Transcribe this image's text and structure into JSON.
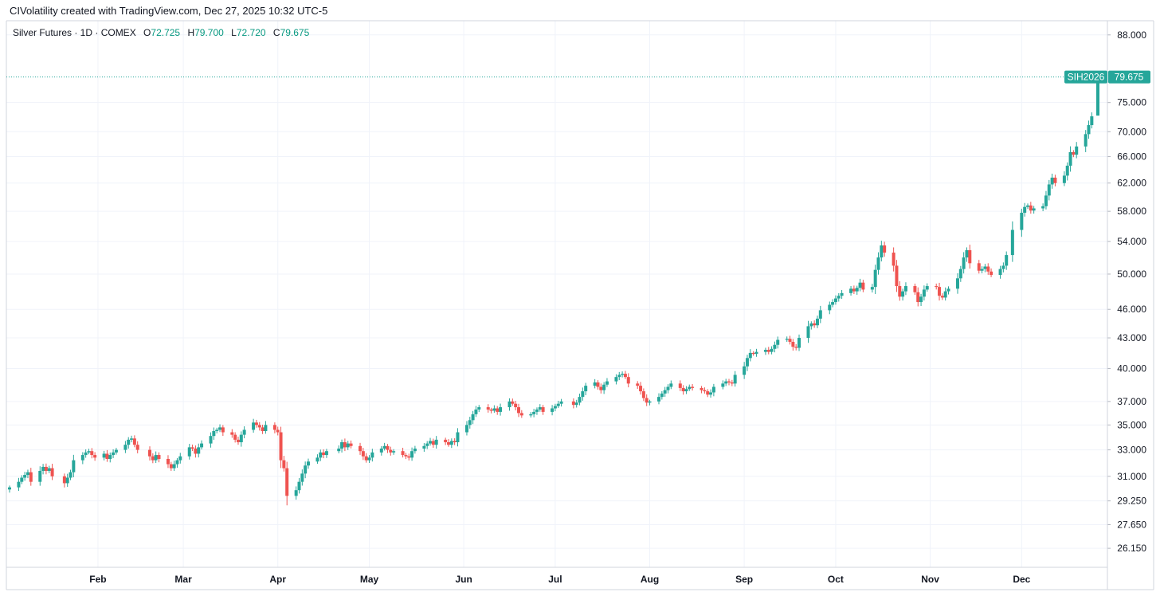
{
  "header": {
    "attribution": "CIVolatility created with TradingView.com, Dec 27, 2025 10:32 UTC-5"
  },
  "legend": {
    "symbol": "Silver Futures · 1D · COMEX",
    "open_label": "O",
    "open": "72.725",
    "high_label": "H",
    "high": "79.700",
    "low_label": "L",
    "low": "72.720",
    "close_label": "C",
    "close": "79.675"
  },
  "price_tag": {
    "symbol": "SIH2026",
    "price": "79.675"
  },
  "colors": {
    "up": "#26a69a",
    "down": "#ef5350",
    "grid": "#f0f3fa",
    "axis_text": "#131722"
  },
  "chart_data": {
    "type": "candlestick",
    "title": "Silver Futures · 1D · COMEX",
    "y_scale": "log",
    "y_ticks": [
      "88.000",
      "75.000",
      "70.000",
      "66.000",
      "62.000",
      "58.000",
      "54.000",
      "50.000",
      "46.000",
      "43.000",
      "40.000",
      "37.000",
      "35.000",
      "33.000",
      "31.000",
      "29.250",
      "27.650",
      "26.150"
    ],
    "x_ticks": [
      {
        "label": "Feb",
        "date": "2025-02-01"
      },
      {
        "label": "Mar",
        "date": "2025-03-01"
      },
      {
        "label": "Apr",
        "date": "2025-04-01"
      },
      {
        "label": "May",
        "date": "2025-05-01"
      },
      {
        "label": "Jun",
        "date": "2025-06-01"
      },
      {
        "label": "Jul",
        "date": "2025-07-01"
      },
      {
        "label": "Aug",
        "date": "2025-08-01"
      },
      {
        "label": "Sep",
        "date": "2025-09-01"
      },
      {
        "label": "Oct",
        "date": "2025-10-01"
      },
      {
        "label": "Nov",
        "date": "2025-11-01"
      },
      {
        "label": "Dec",
        "date": "2025-12-01"
      }
    ],
    "x_range": [
      "2025-01-03",
      "2025-12-26"
    ],
    "y_range": [
      25.0,
      91.0
    ],
    "series_close": [
      [
        "2025-01-03",
        30.2
      ],
      [
        "2025-01-06",
        30.6
      ],
      [
        "2025-01-07",
        30.9
      ],
      [
        "2025-01-08",
        31.1
      ],
      [
        "2025-01-09",
        31.3
      ],
      [
        "2025-01-10",
        30.6
      ],
      [
        "2025-01-13",
        31.4
      ],
      [
        "2025-01-14",
        31.7
      ],
      [
        "2025-01-15",
        31.4
      ],
      [
        "2025-01-16",
        31.6
      ],
      [
        "2025-01-17",
        31.0
      ],
      [
        "2025-01-21",
        30.5
      ],
      [
        "2025-01-22",
        30.9
      ],
      [
        "2025-01-23",
        31.3
      ],
      [
        "2025-01-24",
        32.2
      ],
      [
        "2025-01-27",
        32.6
      ],
      [
        "2025-01-28",
        32.8
      ],
      [
        "2025-01-29",
        32.9
      ],
      [
        "2025-01-30",
        32.6
      ],
      [
        "2025-01-31",
        32.4
      ],
      [
        "2025-02-03",
        32.7
      ],
      [
        "2025-02-04",
        32.3
      ],
      [
        "2025-02-05",
        32.6
      ],
      [
        "2025-02-06",
        32.8
      ],
      [
        "2025-02-07",
        33.0
      ],
      [
        "2025-02-10",
        33.4
      ],
      [
        "2025-02-11",
        33.8
      ],
      [
        "2025-02-12",
        33.9
      ],
      [
        "2025-02-13",
        33.4
      ],
      [
        "2025-02-14",
        33.0
      ],
      [
        "2025-02-18",
        32.5
      ],
      [
        "2025-02-19",
        32.2
      ],
      [
        "2025-02-20",
        32.6
      ],
      [
        "2025-02-21",
        32.3
      ],
      [
        "2025-02-24",
        31.9
      ],
      [
        "2025-02-25",
        31.6
      ],
      [
        "2025-02-26",
        31.9
      ],
      [
        "2025-02-27",
        32.2
      ],
      [
        "2025-02-28",
        32.5
      ],
      [
        "2025-03-03",
        33.2
      ],
      [
        "2025-03-04",
        33.1
      ],
      [
        "2025-03-05",
        32.7
      ],
      [
        "2025-03-06",
        33.2
      ],
      [
        "2025-03-07",
        33.5
      ],
      [
        "2025-03-10",
        34.1
      ],
      [
        "2025-03-11",
        34.5
      ],
      [
        "2025-03-12",
        34.6
      ],
      [
        "2025-03-13",
        34.8
      ],
      [
        "2025-03-14",
        34.4
      ],
      [
        "2025-03-17",
        34.2
      ],
      [
        "2025-03-18",
        33.8
      ],
      [
        "2025-03-19",
        33.6
      ],
      [
        "2025-03-20",
        34.2
      ],
      [
        "2025-03-21",
        34.6
      ],
      [
        "2025-03-24",
        35.2
      ],
      [
        "2025-03-25",
        35.0
      ],
      [
        "2025-03-26",
        34.8
      ],
      [
        "2025-03-27",
        34.5
      ],
      [
        "2025-03-28",
        35.0
      ],
      [
        "2025-03-31",
        34.6
      ],
      [
        "2025-04-01",
        34.4
      ],
      [
        "2025-04-02",
        32.2
      ],
      [
        "2025-04-03",
        31.6
      ],
      [
        "2025-04-04",
        29.6
      ],
      [
        "2025-04-07",
        30.0
      ],
      [
        "2025-04-08",
        30.6
      ],
      [
        "2025-04-09",
        31.2
      ],
      [
        "2025-04-10",
        31.8
      ],
      [
        "2025-04-11",
        32.1
      ],
      [
        "2025-04-14",
        32.4
      ],
      [
        "2025-04-15",
        32.8
      ],
      [
        "2025-04-16",
        32.6
      ],
      [
        "2025-04-17",
        32.9
      ],
      [
        "2025-04-21",
        33.1
      ],
      [
        "2025-04-22",
        33.6
      ],
      [
        "2025-04-23",
        33.2
      ],
      [
        "2025-04-24",
        33.5
      ],
      [
        "2025-04-25",
        33.3
      ],
      [
        "2025-04-28",
        32.9
      ],
      [
        "2025-04-29",
        32.5
      ],
      [
        "2025-04-30",
        32.2
      ],
      [
        "2025-05-01",
        32.4
      ],
      [
        "2025-05-02",
        32.8
      ],
      [
        "2025-05-05",
        33.1
      ],
      [
        "2025-05-06",
        33.3
      ],
      [
        "2025-05-07",
        33.0
      ],
      [
        "2025-05-08",
        32.8
      ],
      [
        "2025-05-09",
        32.9
      ],
      [
        "2025-05-12",
        32.6
      ],
      [
        "2025-05-13",
        32.5
      ],
      [
        "2025-05-14",
        32.4
      ],
      [
        "2025-05-15",
        32.9
      ],
      [
        "2025-05-16",
        33.1
      ],
      [
        "2025-05-19",
        33.3
      ],
      [
        "2025-05-20",
        33.5
      ],
      [
        "2025-05-21",
        33.7
      ],
      [
        "2025-05-22",
        33.4
      ],
      [
        "2025-05-23",
        33.8
      ],
      [
        "2025-05-26",
        33.6
      ],
      [
        "2025-05-27",
        33.4
      ],
      [
        "2025-05-28",
        33.7
      ],
      [
        "2025-05-29",
        33.6
      ],
      [
        "2025-05-30",
        34.4
      ],
      [
        "2025-06-02",
        35.0
      ],
      [
        "2025-06-03",
        35.4
      ],
      [
        "2025-06-04",
        35.9
      ],
      [
        "2025-06-05",
        36.3
      ],
      [
        "2025-06-06",
        36.5
      ],
      [
        "2025-06-09",
        36.3
      ],
      [
        "2025-06-10",
        36.2
      ],
      [
        "2025-06-11",
        36.4
      ],
      [
        "2025-06-12",
        36.1
      ],
      [
        "2025-06-13",
        36.5
      ],
      [
        "2025-06-16",
        37.0
      ],
      [
        "2025-06-17",
        36.8
      ],
      [
        "2025-06-18",
        36.5
      ],
      [
        "2025-06-19",
        36.0
      ],
      [
        "2025-06-20",
        35.8
      ],
      [
        "2025-06-23",
        35.9
      ],
      [
        "2025-06-24",
        36.1
      ],
      [
        "2025-06-25",
        36.3
      ],
      [
        "2025-06-26",
        36.5
      ],
      [
        "2025-06-27",
        36.1
      ],
      [
        "2025-06-30",
        36.4
      ],
      [
        "2025-07-01",
        36.6
      ],
      [
        "2025-07-02",
        36.8
      ],
      [
        "2025-07-03",
        37.0
      ],
      [
        "2025-07-07",
        36.7
      ],
      [
        "2025-07-08",
        36.9
      ],
      [
        "2025-07-09",
        37.4
      ],
      [
        "2025-07-10",
        37.9
      ],
      [
        "2025-07-11",
        38.4
      ],
      [
        "2025-07-14",
        38.7
      ],
      [
        "2025-07-15",
        38.3
      ],
      [
        "2025-07-16",
        38.0
      ],
      [
        "2025-07-17",
        38.5
      ],
      [
        "2025-07-18",
        38.8
      ],
      [
        "2025-07-21",
        39.2
      ],
      [
        "2025-07-22",
        39.4
      ],
      [
        "2025-07-23",
        39.5
      ],
      [
        "2025-07-24",
        39.2
      ],
      [
        "2025-07-25",
        38.6
      ],
      [
        "2025-07-28",
        38.4
      ],
      [
        "2025-07-29",
        37.9
      ],
      [
        "2025-07-30",
        37.3
      ],
      [
        "2025-07-31",
        36.9
      ],
      [
        "2025-08-01",
        37.0
      ],
      [
        "2025-08-04",
        37.4
      ],
      [
        "2025-08-05",
        37.7
      ],
      [
        "2025-08-06",
        38.0
      ],
      [
        "2025-08-07",
        38.3
      ],
      [
        "2025-08-08",
        38.6
      ],
      [
        "2025-08-11",
        38.2
      ],
      [
        "2025-08-12",
        37.9
      ],
      [
        "2025-08-13",
        38.1
      ],
      [
        "2025-08-14",
        38.3
      ],
      [
        "2025-08-15",
        38.2
      ],
      [
        "2025-08-18",
        38.0
      ],
      [
        "2025-08-19",
        37.9
      ],
      [
        "2025-08-20",
        37.6
      ],
      [
        "2025-08-21",
        37.8
      ],
      [
        "2025-08-22",
        38.3
      ],
      [
        "2025-08-25",
        38.6
      ],
      [
        "2025-08-26",
        38.8
      ],
      [
        "2025-08-27",
        38.7
      ],
      [
        "2025-08-28",
        38.6
      ],
      [
        "2025-08-29",
        39.4
      ],
      [
        "2025-09-01",
        40.2
      ],
      [
        "2025-09-02",
        41.0
      ],
      [
        "2025-09-03",
        41.5
      ],
      [
        "2025-09-04",
        41.4
      ],
      [
        "2025-09-05",
        41.6
      ],
      [
        "2025-09-08",
        41.8
      ],
      [
        "2025-09-09",
        41.6
      ],
      [
        "2025-09-10",
        41.9
      ],
      [
        "2025-09-11",
        42.3
      ],
      [
        "2025-09-12",
        42.8
      ],
      [
        "2025-09-15",
        42.9
      ],
      [
        "2025-09-16",
        42.6
      ],
      [
        "2025-09-17",
        42.1
      ],
      [
        "2025-09-18",
        42.0
      ],
      [
        "2025-09-19",
        43.0
      ],
      [
        "2025-09-22",
        44.2
      ],
      [
        "2025-09-23",
        44.5
      ],
      [
        "2025-09-24",
        44.3
      ],
      [
        "2025-09-25",
        45.0
      ],
      [
        "2025-09-26",
        45.9
      ],
      [
        "2025-09-29",
        46.5
      ],
      [
        "2025-09-30",
        46.8
      ],
      [
        "2025-10-01",
        47.2
      ],
      [
        "2025-10-02",
        47.5
      ],
      [
        "2025-10-03",
        47.8
      ],
      [
        "2025-10-06",
        48.3
      ],
      [
        "2025-10-07",
        48.0
      ],
      [
        "2025-10-08",
        48.4
      ],
      [
        "2025-10-09",
        49.0
      ],
      [
        "2025-10-10",
        48.2
      ],
      [
        "2025-10-13",
        48.5
      ],
      [
        "2025-10-14",
        50.5
      ],
      [
        "2025-10-15",
        52.0
      ],
      [
        "2025-10-16",
        53.5
      ],
      [
        "2025-10-17",
        52.6
      ],
      [
        "2025-10-20",
        51.0
      ],
      [
        "2025-10-21",
        48.6
      ],
      [
        "2025-10-22",
        47.4
      ],
      [
        "2025-10-23",
        48.0
      ],
      [
        "2025-10-24",
        48.6
      ],
      [
        "2025-10-27",
        47.9
      ],
      [
        "2025-10-28",
        46.8
      ],
      [
        "2025-10-29",
        47.4
      ],
      [
        "2025-10-30",
        48.2
      ],
      [
        "2025-10-31",
        48.6
      ],
      [
        "2025-11-03",
        48.5
      ],
      [
        "2025-11-04",
        47.5
      ],
      [
        "2025-11-05",
        47.3
      ],
      [
        "2025-11-06",
        48.0
      ],
      [
        "2025-11-07",
        48.3
      ],
      [
        "2025-11-10",
        49.5
      ],
      [
        "2025-11-11",
        50.6
      ],
      [
        "2025-11-12",
        52.0
      ],
      [
        "2025-11-13",
        52.9
      ],
      [
        "2025-11-14",
        51.3
      ],
      [
        "2025-11-17",
        50.4
      ],
      [
        "2025-11-18",
        50.6
      ],
      [
        "2025-11-19",
        50.9
      ],
      [
        "2025-11-20",
        50.3
      ],
      [
        "2025-11-21",
        49.9
      ],
      [
        "2025-11-24",
        50.6
      ],
      [
        "2025-11-25",
        51.0
      ],
      [
        "2025-11-26",
        52.3
      ],
      [
        "2025-11-28",
        55.5
      ],
      [
        "2025-12-01",
        57.8
      ],
      [
        "2025-12-02",
        58.6
      ],
      [
        "2025-12-03",
        58.8
      ],
      [
        "2025-12-04",
        58.1
      ],
      [
        "2025-12-05",
        58.4
      ],
      [
        "2025-12-08",
        58.7
      ],
      [
        "2025-12-09",
        60.2
      ],
      [
        "2025-12-10",
        61.8
      ],
      [
        "2025-12-11",
        62.8
      ],
      [
        "2025-12-12",
        62.0
      ],
      [
        "2025-12-15",
        63.1
      ],
      [
        "2025-12-16",
        64.6
      ],
      [
        "2025-12-17",
        66.7
      ],
      [
        "2025-12-18",
        66.3
      ],
      [
        "2025-12-19",
        67.6
      ],
      [
        "2025-12-22",
        69.6
      ],
      [
        "2025-12-23",
        71.1
      ],
      [
        "2025-12-24",
        72.6
      ],
      [
        "2025-12-26",
        79.675
      ]
    ]
  }
}
